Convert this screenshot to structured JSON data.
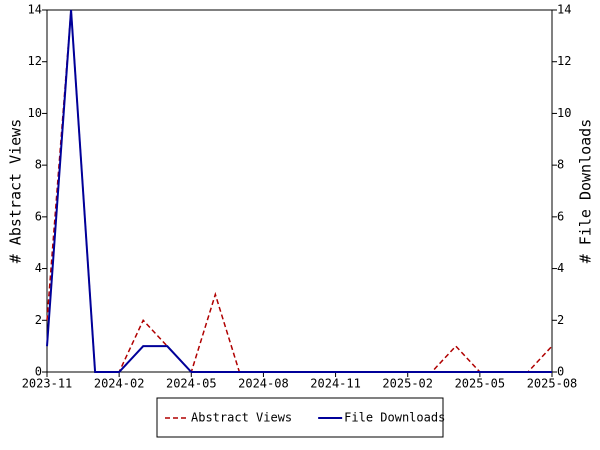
{
  "chart_data": {
    "type": "line",
    "x": [
      "2023-11",
      "2023-12",
      "2024-01",
      "2024-02",
      "2024-03",
      "2024-04",
      "2024-05",
      "2024-06",
      "2024-07",
      "2024-08",
      "2024-09",
      "2024-10",
      "2024-11",
      "2024-12",
      "2025-01",
      "2025-02",
      "2025-03",
      "2025-04",
      "2025-05",
      "2025-06",
      "2025-07",
      "2025-08"
    ],
    "xlim": [
      "2023-11",
      "2025-08"
    ],
    "xticks": [
      "2023-11",
      "2024-02",
      "2024-05",
      "2024-08",
      "2024-11",
      "2025-02",
      "2025-05",
      "2025-08"
    ],
    "ylabel": "# Abstract Views",
    "y2label": "# File Downloads",
    "ylim": [
      0,
      14
    ],
    "yticks": [
      0,
      2,
      4,
      6,
      8,
      10,
      12,
      14
    ],
    "y2lim": [
      0,
      14
    ],
    "y2ticks": [
      0,
      2,
      4,
      6,
      8,
      10,
      12,
      14
    ],
    "legend": "bottom",
    "series": [
      {
        "name": "Abstract Views",
        "color": "#b00000",
        "dashed": true,
        "values": [
          2,
          14,
          0,
          0,
          2,
          1,
          0,
          3,
          0,
          0,
          0,
          0,
          0,
          0,
          0,
          0,
          0,
          1,
          0,
          0,
          0,
          1
        ]
      },
      {
        "name": "File Downloads",
        "color": "#000099",
        "axis": "y2",
        "dashed": false,
        "values": [
          1,
          14,
          0,
          0,
          1,
          1,
          0,
          0,
          0,
          0,
          0,
          0,
          0,
          0,
          0,
          0,
          0,
          0,
          0,
          0,
          0,
          0
        ]
      }
    ]
  }
}
